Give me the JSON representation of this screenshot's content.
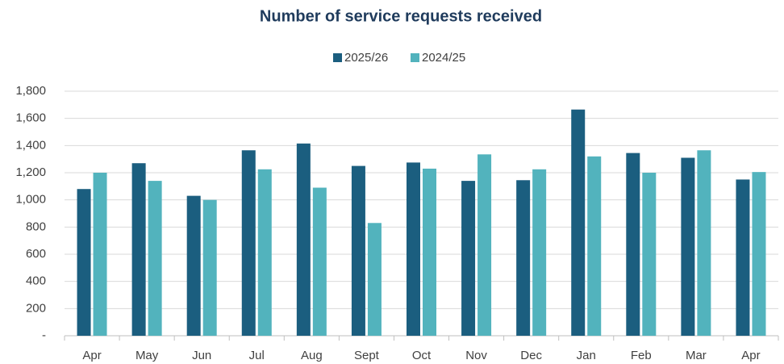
{
  "chart_data": {
    "type": "bar",
    "title": "Number of service requests received",
    "categories": [
      "Apr",
      "May",
      "Jun",
      "Jul",
      "Aug",
      "Sept",
      "Oct",
      "Nov",
      "Dec",
      "Jan",
      "Feb",
      "Mar",
      "Apr"
    ],
    "series": [
      {
        "name": "2025/26",
        "color": "#1b5e7f",
        "values": [
          1080,
          1270,
          1030,
          1365,
          1415,
          1250,
          1275,
          1140,
          1145,
          1665,
          1345,
          1310,
          1150
        ]
      },
      {
        "name": "2024/25",
        "color": "#52b3bd",
        "values": [
          1200,
          1140,
          1000,
          1225,
          1090,
          830,
          1230,
          1335,
          1225,
          1320,
          1200,
          1365,
          1205
        ]
      }
    ],
    "ylim": [
      0,
      1800
    ],
    "yticks": [
      {
        "value": 0,
        "label": "-"
      },
      200,
      400,
      600,
      800,
      {
        "value": 1000,
        "label": "1,000"
      },
      {
        "value": 1200,
        "label": "1,200"
      },
      {
        "value": 1400,
        "label": "1,400"
      },
      {
        "value": 1600,
        "label": "1,600"
      },
      {
        "value": 1800,
        "label": "1,800"
      }
    ],
    "grid": true,
    "legend": "top"
  }
}
